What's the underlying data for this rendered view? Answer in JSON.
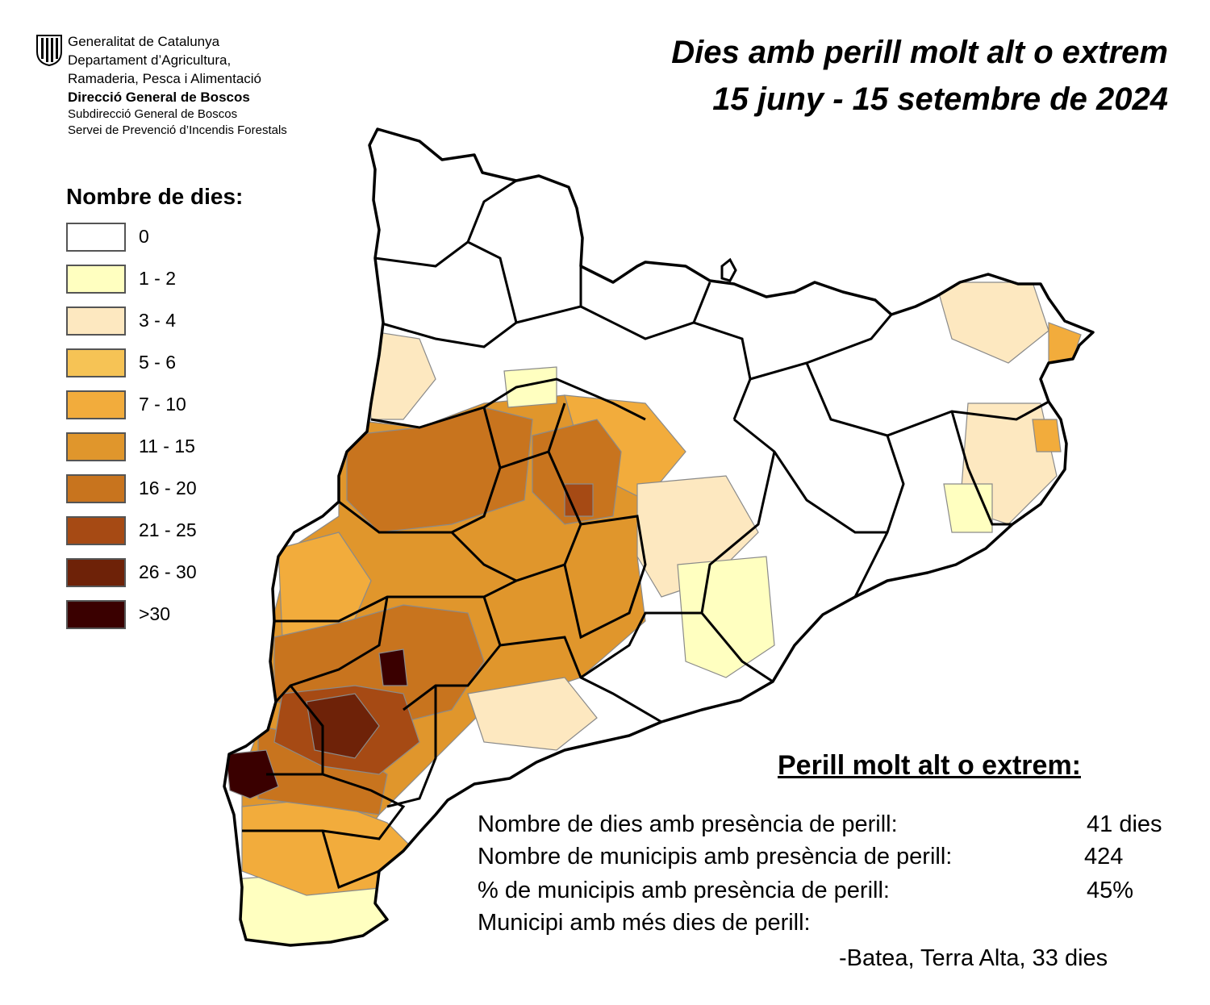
{
  "header": {
    "org_lines": [
      "Generalitat de Catalunya",
      "Departament d’Agricultura,",
      "Ramaderia, Pesca i Alimentació",
      "Direcció General de Boscos",
      "Subdirecció General de Boscos",
      "Servei de Prevenció d’Incendis Forestals"
    ],
    "title_line1": "Dies amb perill molt alt o extrem",
    "title_line2": "15 juny - 15 setembre de 2024"
  },
  "legend": {
    "title": "Nombre de dies:",
    "items": [
      {
        "label": "0",
        "color": "#ffffff"
      },
      {
        "label": "1 - 2",
        "color": "#ffffc0"
      },
      {
        "label": "3 - 4",
        "color": "#fde8c0"
      },
      {
        "label": "5 - 6",
        "color": "#f6c355"
      },
      {
        "label": "7 - 10",
        "color": "#f2ac3c"
      },
      {
        "label": "11 - 15",
        "color": "#e0962c"
      },
      {
        "label": "16 - 20",
        "color": "#c8741e"
      },
      {
        "label": "21 - 25",
        "color": "#a64a14"
      },
      {
        "label": "26 - 30",
        "color": "#6e2208"
      },
      {
        "label": ">30",
        "color": "#3a0000"
      }
    ]
  },
  "stats": {
    "title": "Perill molt alt o extrem:",
    "rows": [
      {
        "label": "Nombre de dies amb presència de perill:",
        "value": "41 dies"
      },
      {
        "label": "Nombre de municipis amb presència de perill:",
        "value": "424"
      },
      {
        "label": "% de municipis amb presència de perill:",
        "value": "45%"
      },
      {
        "label": "Municipi amb més dies de perill:",
        "value": ""
      }
    ],
    "top_municipality": "-Batea, Terra Alta, 33 dies"
  }
}
